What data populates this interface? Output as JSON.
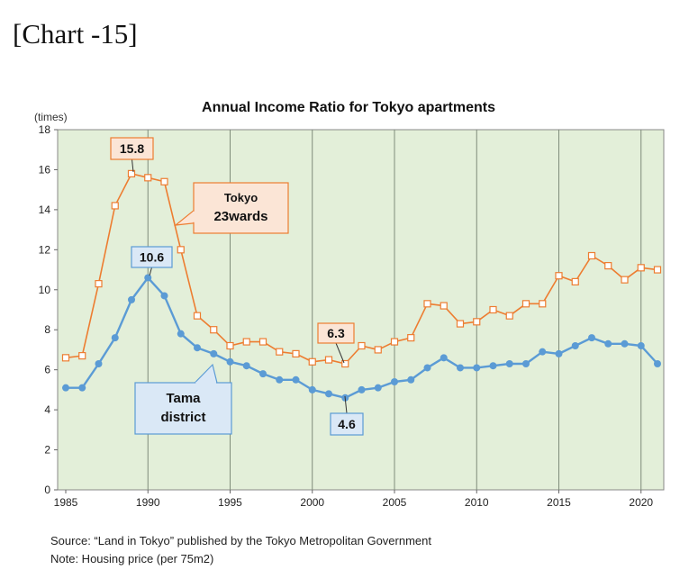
{
  "header": {
    "label": "[Chart -15]"
  },
  "footer": {
    "source": "Source: “Land in Tokyo” published by the Tokyo Metropolitan Government",
    "note": "Note: Housing price (per 75m2)"
  },
  "colors": {
    "plot_bg": "#e3efd9",
    "tokyo": "#ed7d31",
    "tama": "#5b9bd5",
    "tokyo_box_bg": "#fbe5d6",
    "tama_box_bg": "#dae8f6"
  },
  "chart_data": {
    "type": "line",
    "title": "Annual Income Ratio for Tokyo apartments",
    "ylabel": "(times)",
    "xlabel": "",
    "ylim": [
      0,
      18
    ],
    "yticks": [
      0,
      2,
      4,
      6,
      8,
      10,
      12,
      14,
      16,
      18
    ],
    "xlim": [
      1985,
      2021
    ],
    "xticks": [
      1985,
      1990,
      1995,
      2000,
      2005,
      2010,
      2015,
      2020
    ],
    "grid": "vertical every 5 years",
    "x": [
      1985,
      1986,
      1987,
      1988,
      1989,
      1990,
      1991,
      1992,
      1993,
      1994,
      1995,
      1996,
      1997,
      1998,
      1999,
      2000,
      2001,
      2002,
      2003,
      2004,
      2005,
      2006,
      2007,
      2008,
      2009,
      2010,
      2011,
      2012,
      2013,
      2014,
      2015,
      2016,
      2017,
      2018,
      2019,
      2020,
      2021
    ],
    "series": [
      {
        "name": "Tokyo 23wards",
        "marker": "open-square",
        "values": [
          6.6,
          6.7,
          10.3,
          14.2,
          15.8,
          15.6,
          15.4,
          12.0,
          8.7,
          8.0,
          7.2,
          7.4,
          7.4,
          6.9,
          6.8,
          6.4,
          6.5,
          6.3,
          7.2,
          7.0,
          7.4,
          7.6,
          9.3,
          9.2,
          8.3,
          8.4,
          9.0,
          8.7,
          9.3,
          9.3,
          10.7,
          10.4,
          11.7,
          11.2,
          10.5,
          11.1,
          11.0
        ]
      },
      {
        "name": "Tama district",
        "marker": "filled-circle",
        "values": [
          5.1,
          5.1,
          6.3,
          7.6,
          9.5,
          10.6,
          9.7,
          7.8,
          7.1,
          6.8,
          6.4,
          6.2,
          5.8,
          5.5,
          5.5,
          5.0,
          4.8,
          4.6,
          5.0,
          5.1,
          5.4,
          5.5,
          6.1,
          6.6,
          6.1,
          6.1,
          6.2,
          6.3,
          6.3,
          6.9,
          6.8,
          7.2,
          7.6,
          7.3,
          7.3,
          7.2,
          6.3
        ]
      }
    ],
    "annotations": [
      {
        "label": "15.8",
        "series": 0,
        "x": 1989
      },
      {
        "label": "6.3",
        "series": 0,
        "x": 2002
      },
      {
        "label": "10.6",
        "series": 1,
        "x": 1990
      },
      {
        "label": "4.6",
        "series": 1,
        "x": 2002
      }
    ],
    "callouts": [
      {
        "series": 0,
        "lines": [
          "Tokyo",
          "23wards"
        ]
      },
      {
        "series": 1,
        "lines": [
          "Tama",
          "district"
        ]
      }
    ]
  }
}
